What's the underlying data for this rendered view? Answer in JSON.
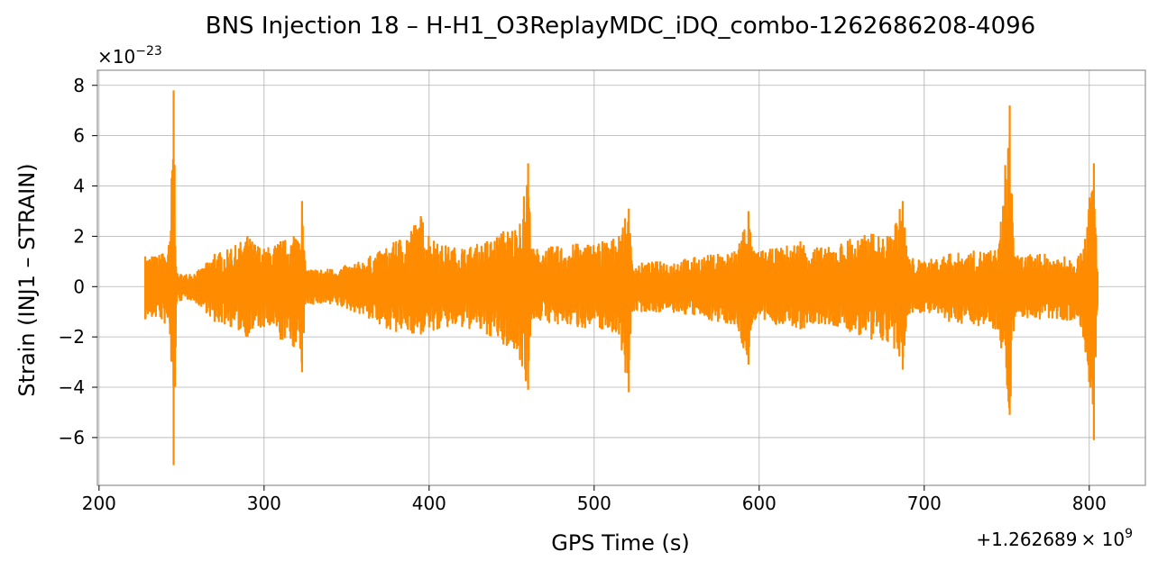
{
  "chart_data": {
    "type": "line",
    "title": "BNS Injection 18 – H-H1_O3ReplayMDC_iDQ_combo-1262686208-4096",
    "xlabel": "GPS Time (s)",
    "ylabel": "Strain (INJ1 – STRAIN)",
    "x_offset_base": "+1.262689",
    "x_offset_mult": "× 10",
    "x_offset_exp": "9",
    "y_mult_base": "×10",
    "y_mult_exp": "−23",
    "xlim": [
      199,
      834
    ],
    "ylim": [
      -7.9,
      8.6
    ],
    "grid": true,
    "line_color": "#ff8c00",
    "x_ticks": [
      {
        "value": 200,
        "label": "200"
      },
      {
        "value": 300,
        "label": "300"
      },
      {
        "value": 400,
        "label": "400"
      },
      {
        "value": 500,
        "label": "500"
      },
      {
        "value": 600,
        "label": "600"
      },
      {
        "value": 700,
        "label": "700"
      },
      {
        "value": 800,
        "label": "800"
      }
    ],
    "y_ticks": [
      {
        "value": -6,
        "label": "−6"
      },
      {
        "value": -4,
        "label": "−4"
      },
      {
        "value": -2,
        "label": "−2"
      },
      {
        "value": 0,
        "label": "0"
      },
      {
        "value": 2,
        "label": "2"
      },
      {
        "value": 4,
        "label": "4"
      },
      {
        "value": 6,
        "label": "6"
      },
      {
        "value": 8,
        "label": "8"
      }
    ],
    "series": [
      {
        "x_start": 228,
        "x_end": 805,
        "envelope": [
          [
            228,
            1.2,
            -1.3
          ],
          [
            232,
            1.2,
            -1.2
          ],
          [
            238,
            1.3,
            -1.3
          ],
          [
            243,
            1.8,
            -1.9
          ],
          [
            245.2,
            7.8,
            -7.1
          ],
          [
            247,
            0.5,
            -0.6
          ],
          [
            255,
            0.5,
            -0.5
          ],
          [
            262,
            0.7,
            -0.8
          ],
          [
            270,
            1.3,
            -1.4
          ],
          [
            280,
            1.5,
            -1.6
          ],
          [
            290,
            2.0,
            -2.0
          ],
          [
            300,
            1.5,
            -1.6
          ],
          [
            310,
            1.8,
            -2.1
          ],
          [
            318,
            2.0,
            -2.4
          ],
          [
            323,
            3.4,
            -3.4
          ],
          [
            325,
            0.7,
            -0.7
          ],
          [
            340,
            0.7,
            -0.7
          ],
          [
            355,
            0.9,
            -1.0
          ],
          [
            370,
            1.4,
            -1.5
          ],
          [
            380,
            1.8,
            -1.8
          ],
          [
            395,
            2.8,
            -1.9
          ],
          [
            405,
            1.7,
            -1.7
          ],
          [
            420,
            1.5,
            -1.6
          ],
          [
            435,
            1.8,
            -1.9
          ],
          [
            445,
            2.2,
            -2.3
          ],
          [
            455,
            2.5,
            -2.9
          ],
          [
            460,
            4.9,
            -4.1
          ],
          [
            462,
            1.5,
            -1.3
          ],
          [
            478,
            1.6,
            -1.5
          ],
          [
            490,
            1.7,
            -1.6
          ],
          [
            505,
            1.8,
            -1.7
          ],
          [
            515,
            2.0,
            -1.9
          ],
          [
            521,
            3.1,
            -4.2
          ],
          [
            523,
            0.9,
            -1.0
          ],
          [
            540,
            1.0,
            -1.0
          ],
          [
            555,
            1.1,
            -1.1
          ],
          [
            575,
            1.3,
            -1.4
          ],
          [
            585,
            1.4,
            -1.5
          ],
          [
            593.5,
            3.0,
            -3.1
          ],
          [
            596,
            1.4,
            -1.3
          ],
          [
            610,
            1.5,
            -1.5
          ],
          [
            625,
            1.8,
            -1.7
          ],
          [
            640,
            1.5,
            -1.5
          ],
          [
            655,
            1.9,
            -1.8
          ],
          [
            668,
            2.1,
            -2.1
          ],
          [
            678,
            2.0,
            -2.2
          ],
          [
            687,
            3.4,
            -3.3
          ],
          [
            690,
            1.2,
            -1.1
          ],
          [
            700,
            1.0,
            -1.0
          ],
          [
            715,
            1.3,
            -1.4
          ],
          [
            730,
            1.4,
            -1.5
          ],
          [
            745,
            1.5,
            -1.7
          ],
          [
            751.8,
            7.2,
            -5.1
          ],
          [
            755,
            1.2,
            -1.2
          ],
          [
            770,
            1.3,
            -1.3
          ],
          [
            785,
            1.2,
            -1.3
          ],
          [
            795,
            1.3,
            -1.6
          ],
          [
            802.8,
            4.9,
            -6.1
          ],
          [
            805,
            0.6,
            -0.8
          ]
        ]
      }
    ]
  }
}
